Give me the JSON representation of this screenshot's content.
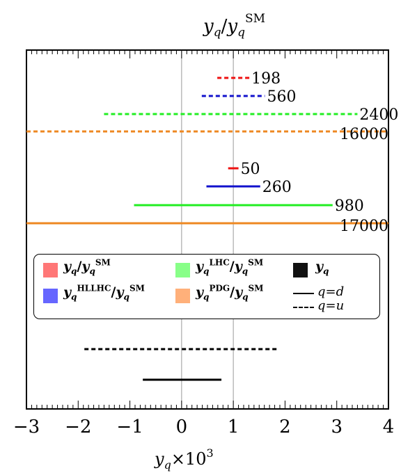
{
  "chart_data": {
    "type": "interval",
    "title": "y_q/y_q^SM",
    "xlabel": "y_q×10^3",
    "xlim": [
      -3,
      4
    ],
    "xticks": [
      "−3",
      "−2",
      "−1",
      "0",
      "1",
      "2",
      "3",
      "4"
    ],
    "xtick_values": [
      -3,
      -2,
      -1,
      0,
      1,
      2,
      3,
      4
    ],
    "reference_lines": [
      0,
      1
    ],
    "upper_series": [
      {
        "label": "198",
        "center": 1.0,
        "xmin": 0.69,
        "xmax": 1.31,
        "color": "#ee1111",
        "dashed": true
      },
      {
        "label": "560",
        "center": 1.0,
        "xmin": 0.39,
        "xmax": 1.61,
        "color": "#1111cc",
        "dashed": true
      },
      {
        "label": "2400",
        "center": 1.0,
        "xmin": -1.5,
        "xmax": 3.4,
        "color": "#22ee22",
        "dashed": true
      },
      {
        "label": "16000",
        "center": 1.0,
        "xmin": -3.0,
        "xmax": 4.0,
        "color": "#ee8822",
        "dashed": true
      },
      {
        "label": "50",
        "center": 1.0,
        "xmin": 0.9,
        "xmax": 1.1,
        "color": "#ee1111",
        "dashed": false
      },
      {
        "label": "260",
        "center": 1.0,
        "xmin": 0.48,
        "xmax": 1.52,
        "color": "#1111cc",
        "dashed": false
      },
      {
        "label": "980",
        "center": 1.0,
        "xmin": -0.92,
        "xmax": 2.92,
        "color": "#22ee22",
        "dashed": false
      },
      {
        "label": "17000",
        "center": 1.0,
        "xmin": -3.0,
        "xmax": 4.0,
        "color": "#ee8822",
        "dashed": false
      }
    ],
    "lower_series": [
      {
        "name": "q=u",
        "xmin": -1.88,
        "xmax": 1.88,
        "color": "#000000",
        "dashed": true
      },
      {
        "name": "q=d",
        "xmin": -0.75,
        "xmax": 0.77,
        "color": "#000000",
        "dashed": false
      }
    ],
    "legend": {
      "entries": [
        {
          "name": "y_q/y_q^SM",
          "color": "#ff7777"
        },
        {
          "name": "y_q^HLLHC/y_q^SM",
          "color": "#6666ff"
        },
        {
          "name": "y_q^LHC/y_q^SM",
          "color": "#88ff88"
        },
        {
          "name": "y_q^PDG/y_q^SM",
          "color": "#ffb07a"
        },
        {
          "name": "y_q",
          "color": "#111111"
        }
      ],
      "line_styles": [
        {
          "name": "q=d",
          "style": "solid"
        },
        {
          "name": "q=u",
          "style": "dashed"
        }
      ],
      "placement": "middle"
    },
    "grid": false
  },
  "legend_text": {
    "y": "y",
    "q": "q",
    "SM": "SM",
    "HLLHC": "HLLHC",
    "LHC": "LHC",
    "PDG": "PDG",
    "slash": "/",
    "qd": "q=d",
    "qu": "q=u"
  },
  "title_parts": {
    "y": "y",
    "q": "q",
    "slash": "/",
    "SM": "SM"
  },
  "xlabel_parts": {
    "y": "y",
    "q": "q",
    "times": "×10",
    "exp": "3"
  }
}
